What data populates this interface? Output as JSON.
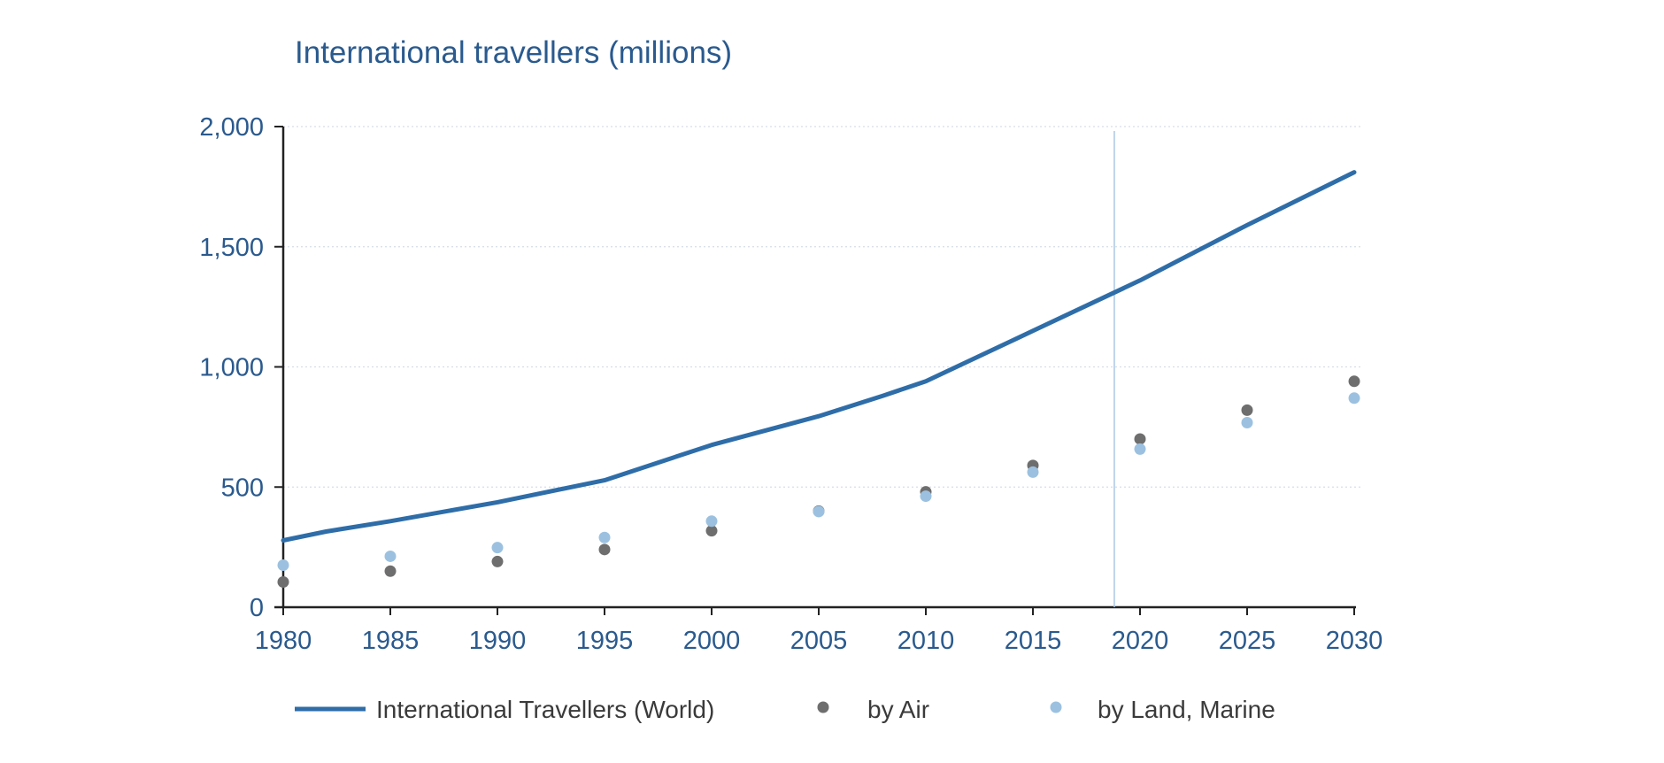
{
  "chart_data": {
    "type": "line",
    "title": "International travellers (millions)",
    "xlabel": "",
    "ylabel": "",
    "xlim": [
      1980,
      2030
    ],
    "ylim": [
      0,
      2000
    ],
    "x_ticks": [
      1980,
      1985,
      1990,
      1995,
      2000,
      2005,
      2010,
      2015,
      2020,
      2025,
      2030
    ],
    "y_ticks": [
      0,
      500,
      1000,
      1500,
      2000
    ],
    "y_tick_labels": [
      "0",
      "500",
      "1,000",
      "1,500",
      "2,000"
    ],
    "grid": "horizontal dotted",
    "reference_line_x": 2018.8,
    "legend_position": "bottom",
    "colors": {
      "line": "#2e6da8",
      "air": "#6e6e6e",
      "land": "#9cc1e0",
      "text": "#2a5a8e"
    },
    "series": [
      {
        "name": "International Travellers (World)",
        "type": "line",
        "x": [
          1980,
          1982,
          1985,
          1990,
          1995,
          2000,
          2005,
          2008,
          2010,
          2015,
          2020,
          2025,
          2030
        ],
        "values": [
          278,
          315,
          358,
          437,
          528,
          675,
          795,
          880,
          940,
          1150,
          1360,
          1590,
          1810
        ]
      },
      {
        "name": "by Air",
        "type": "scatter",
        "x": [
          1980,
          1985,
          1990,
          1995,
          2000,
          2005,
          2010,
          2015,
          2020,
          2025,
          2030
        ],
        "values": [
          105,
          150,
          190,
          240,
          318,
          400,
          480,
          590,
          700,
          820,
          940
        ]
      },
      {
        "name": "by Land, Marine",
        "type": "scatter",
        "x": [
          1980,
          1985,
          1990,
          1995,
          2000,
          2005,
          2010,
          2015,
          2020,
          2025,
          2030
        ],
        "values": [
          175,
          212,
          248,
          290,
          358,
          398,
          462,
          562,
          658,
          768,
          870
        ]
      }
    ]
  }
}
